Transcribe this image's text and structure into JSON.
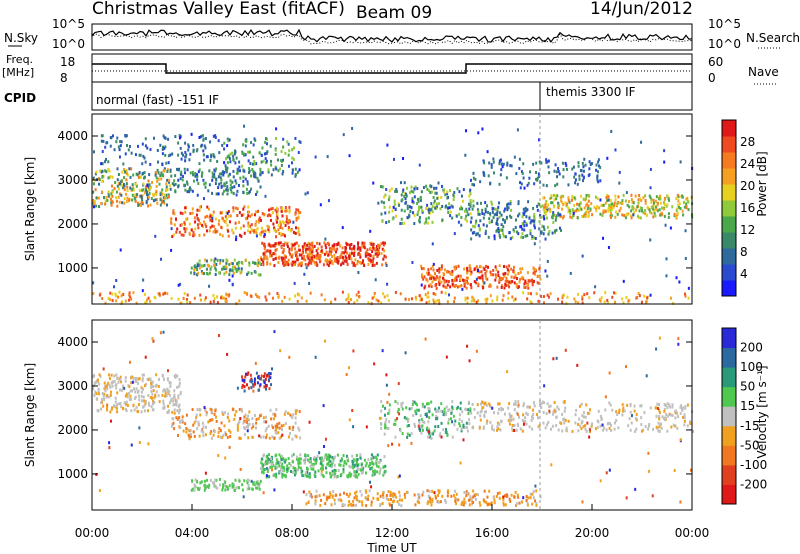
{
  "header": {
    "title": "Christmas Valley East (fitACF)",
    "beam": "Beam 09",
    "date": "14/Jun/2012"
  },
  "panels": {
    "noise": {
      "left_label": "N.Sky",
      "right_label": "N.Search",
      "tick_high": "10^5",
      "tick_low": "10^0"
    },
    "freq": {
      "label_line1": "Freq.",
      "label_line2": "[MHz]",
      "left_ticks": [
        "18",
        "8"
      ],
      "right_ticks": [
        "60",
        "0"
      ],
      "right_label": "Nave"
    },
    "cpid": {
      "label": "CPID",
      "entries": [
        "normal (fast) -151 IF",
        "themis 3300 IF"
      ]
    }
  },
  "chart_data": [
    {
      "type": "heatmap",
      "title": "",
      "ylabel": "Slant Range [km]",
      "yticks": [
        "1000",
        "2000",
        "3000",
        "4000"
      ],
      "ylim": [
        180,
        4500
      ],
      "colorbar_label": "Power [dB]",
      "colorbar_ticks": [
        "4",
        "8",
        "12",
        "16",
        "20",
        "24",
        "28"
      ],
      "colorbar_colors": [
        "#1a1aff",
        "#2a4ad0",
        "#2f6a9e",
        "#3a8a6a",
        "#4aa84a",
        "#8fca3a",
        "#e8d020",
        "#f5a020",
        "#f57a20",
        "#f04a20",
        "#e01818"
      ]
    },
    {
      "type": "heatmap",
      "title": "",
      "ylabel": "Slant Range [km]",
      "yticks": [
        "1000",
        "2000",
        "3000",
        "4000"
      ],
      "ylim": [
        180,
        4500
      ],
      "xlabel": "Time UT",
      "xticks": [
        "00:00",
        "04:00",
        "08:00",
        "12:00",
        "16:00",
        "20:00",
        "00:00"
      ],
      "colorbar_label": "Velocity [m s⁻¹]",
      "colorbar_ticks": [
        "200",
        "100",
        "50",
        "15",
        "-15",
        "-50",
        "-100",
        "-200"
      ],
      "colorbar_colors": [
        "#2a2ad8",
        "#2a6aa0",
        "#2a9a7a",
        "#50c850",
        "#c0c0c0",
        "#f0a020",
        "#f07820",
        "#e04020",
        "#e01818"
      ]
    }
  ]
}
